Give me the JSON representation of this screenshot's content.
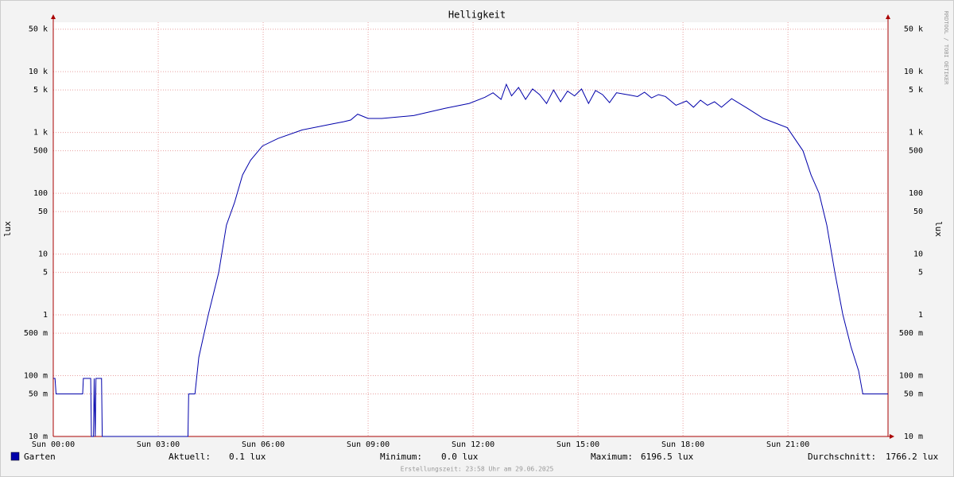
{
  "chart_data": {
    "type": "line",
    "title": "Helligkeit",
    "y_label": "lux",
    "log_scale": true,
    "grid": true,
    "xlim": [
      0,
      23.86
    ],
    "xticks": [
      {
        "value": 0,
        "label": "Sun 00:00"
      },
      {
        "value": 3,
        "label": "Sun 03:00"
      },
      {
        "value": 6,
        "label": "Sun 06:00"
      },
      {
        "value": 9,
        "label": "Sun 09:00"
      },
      {
        "value": 12,
        "label": "Sun 12:00"
      },
      {
        "value": 15,
        "label": "Sun 15:00"
      },
      {
        "value": 18,
        "label": "Sun 18:00"
      },
      {
        "value": 21,
        "label": "Sun 21:00"
      }
    ],
    "ylim": [
      0.01,
      65000
    ],
    "yticks": [
      {
        "value": 0.01,
        "label": "10 m"
      },
      {
        "value": 0.05,
        "label": "50 m"
      },
      {
        "value": 0.1,
        "label": "100 m"
      },
      {
        "value": 0.5,
        "label": "500 m"
      },
      1,
      5,
      10,
      50,
      100,
      500,
      {
        "value": 1000,
        "label": "1 k"
      },
      {
        "value": 5000,
        "label": "5 k"
      },
      {
        "value": 10000,
        "label": "10 k"
      },
      {
        "value": 50000,
        "label": "50 k"
      }
    ],
    "x": [
      0,
      0.05,
      0.08,
      0.84,
      0.86,
      1.07,
      1.09,
      1.15,
      1.17,
      1.2,
      1.22,
      1.27,
      1.38,
      1.4,
      3.85,
      3.87,
      4.05,
      4.16,
      4.43,
      4.73,
      4.95,
      5.18,
      5.41,
      5.64,
      5.98,
      6.43,
      7.11,
      8.02,
      8.3,
      8.5,
      8.7,
      9.0,
      9.39,
      10.3,
      11.2,
      11.89,
      12.34,
      12.57,
      12.8,
      12.95,
      13.1,
      13.3,
      13.5,
      13.7,
      13.9,
      14.1,
      14.3,
      14.5,
      14.7,
      14.9,
      15.1,
      15.3,
      15.5,
      15.7,
      15.9,
      16.1,
      16.3,
      16.5,
      16.7,
      16.9,
      17.1,
      17.3,
      17.5,
      17.8,
      18.1,
      18.3,
      18.5,
      18.7,
      18.9,
      19.1,
      19.39,
      19.84,
      20.3,
      20.98,
      21.43,
      21.66,
      21.89,
      22.11,
      22.34,
      22.57,
      22.8,
      23.02,
      23.14,
      23.86
    ],
    "series": [
      {
        "name": "Garten",
        "color": "#0000aa",
        "values": [
          0.09,
          0.09,
          0.05,
          0.05,
          0.09,
          0.09,
          0.01,
          0.01,
          0.09,
          0.01,
          0.09,
          0.09,
          0.09,
          0.01,
          0.01,
          0.05,
          0.05,
          0.2,
          1,
          5,
          30,
          70,
          200,
          350,
          600,
          800,
          1100,
          1400,
          1500,
          1600,
          2000,
          1700,
          1700,
          1900,
          2500,
          3000,
          3800,
          4500,
          3500,
          6196.5,
          4000,
          5500,
          3500,
          5200,
          4200,
          3000,
          5000,
          3200,
          4800,
          4000,
          5200,
          3000,
          4900,
          4200,
          3100,
          4500,
          4300,
          4100,
          3900,
          4600,
          3700,
          4200,
          3900,
          2800,
          3300,
          2600,
          3400,
          2800,
          3200,
          2600,
          3600,
          2500,
          1700,
          1200,
          500,
          200,
          100,
          30,
          5,
          1,
          0.3,
          0.12,
          0.05,
          0.05
        ]
      }
    ],
    "legend_stats": [
      {
        "label": "Aktuell:",
        "value": "0.1 lux"
      },
      {
        "label": "Minimum:",
        "value": "0.0 lux"
      },
      {
        "label": "Maximum:",
        "value": "6196.5 lux"
      },
      {
        "label": "Durchschnitt:",
        "value": "1766.2 lux"
      }
    ],
    "footer": "Erstellungszeit: 23:58 Uhr am 29.06.2025",
    "watermark": "RRDTOOL / TOBI OETIKER"
  }
}
